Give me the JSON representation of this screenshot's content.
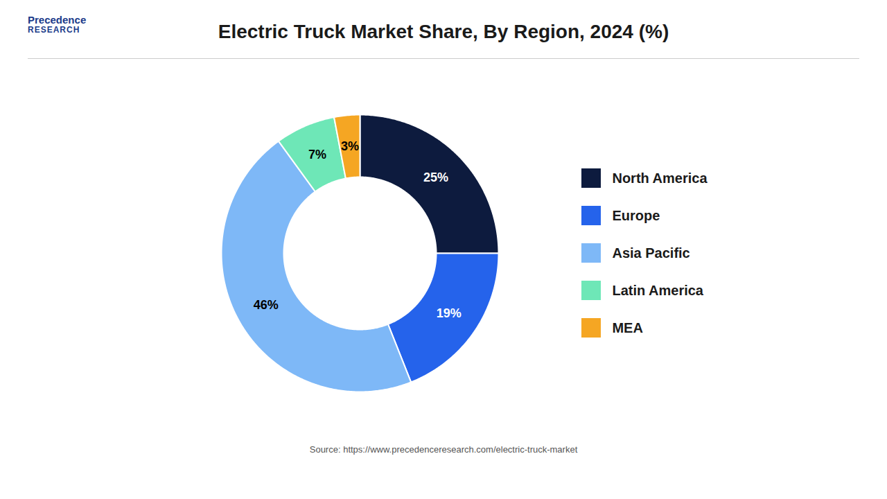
{
  "chart_data": {
    "type": "donut",
    "title": "Electric Truck Market Share, By Region, 2024 (%)",
    "categories": [
      "North America",
      "Europe",
      "Asia Pacific",
      "Latin America",
      "MEA"
    ],
    "values": [
      25,
      19,
      46,
      7,
      3
    ],
    "value_labels": [
      "25%",
      "19%",
      "46%",
      "7%",
      "3%"
    ],
    "colors": [
      "#0d1b3e",
      "#2563eb",
      "#7eb8f7",
      "#6ee7b7",
      "#f5a623"
    ],
    "data_labels": true,
    "legend": "right",
    "caption": "Source: https://www.precedenceresearch.com/electric-truck-market",
    "annotations": [
      "Precedence",
      "RESEARCH"
    ]
  }
}
